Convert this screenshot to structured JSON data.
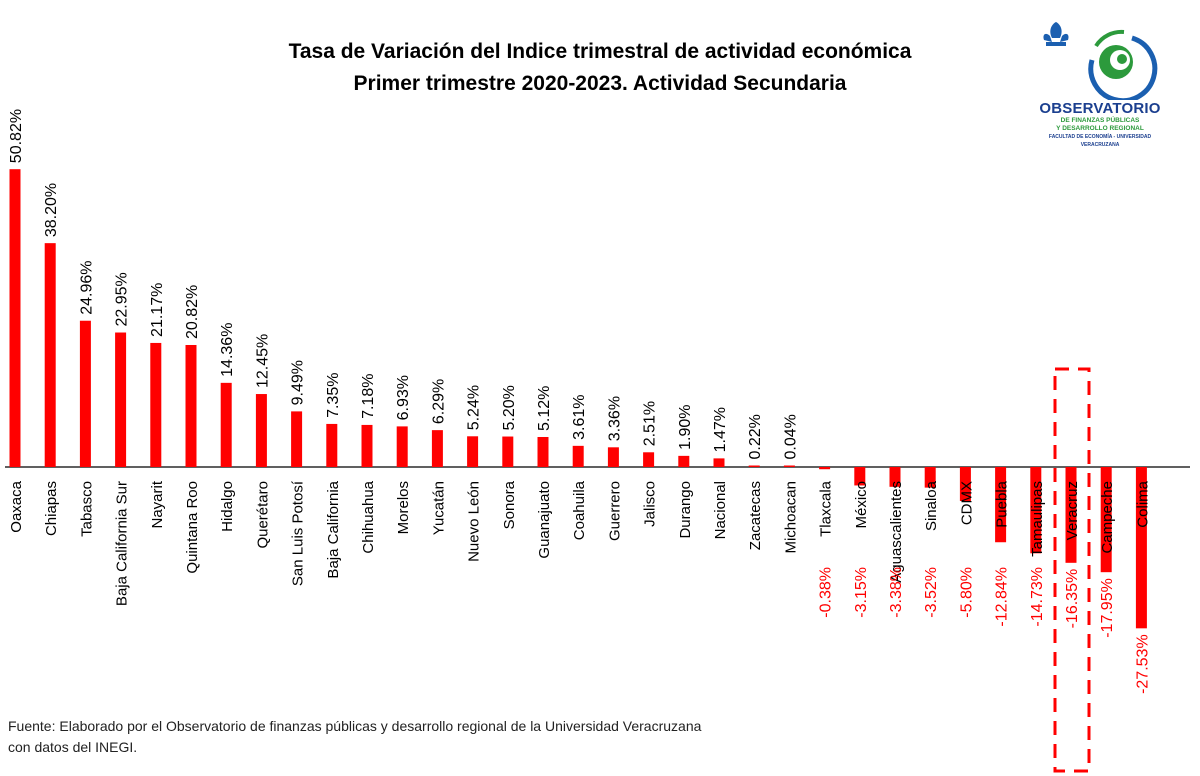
{
  "title_line1": "Tasa de Variación del Indice trimestral de actividad económica",
  "title_line2": "Primer trimestre 2020-2023. Actividad Secundaria",
  "logo": {
    "name": "OBSERVATORIO",
    "sub1": "DE FINANZAS PÚBLICAS",
    "sub2": "Y DESARROLLO REGIONAL",
    "sub3": "FACULTAD DE ECONOMÍA - UNIVERSIDAD VERACRUZANA"
  },
  "footer_line1": "Fuente: Elaborado por el Observatorio de finanzas públicas y desarrollo regional de la Universidad Veracruzana",
  "footer_line2": "con datos del INEGI.",
  "colors": {
    "bar": "#ff0000",
    "negative_label": "#ff0000",
    "highlight": "#ff0000"
  },
  "chart_data": {
    "type": "bar",
    "title": "Tasa de Variación del Indice trimestral de actividad económica Primer trimestre 2020-2023. Actividad Secundaria",
    "xlabel": "",
    "ylabel": "",
    "ylim": [
      -27.53,
      50.82
    ],
    "categories": [
      "Oaxaca",
      "Chiapas",
      "Tabasco",
      "Baja California Sur",
      "Nayarit",
      "Quintana Roo",
      "Hidalgo",
      "Querétaro",
      "San Luis Potosí",
      "Baja California",
      "Chihuahua",
      "Morelos",
      "Yucatán",
      "Nuevo León",
      "Sonora",
      "Guanajuato",
      "Coahuila",
      "Guerrero",
      "Jalisco",
      "Durango",
      "Nacional",
      "Zacatecas",
      "Michoacan",
      "Tlaxcala",
      "México",
      "Aguascalientes",
      "Sinaloa",
      "CDMX",
      "Puebla",
      "Tamaulipas",
      "Veracruz",
      "Campeche",
      "Colima"
    ],
    "values": [
      50.82,
      38.2,
      24.96,
      22.95,
      21.17,
      20.82,
      14.36,
      12.45,
      9.49,
      7.35,
      7.18,
      6.93,
      6.29,
      5.24,
      5.2,
      5.12,
      3.61,
      3.36,
      2.51,
      1.9,
      1.47,
      0.22,
      0.04,
      -0.38,
      -3.15,
      -3.38,
      -3.52,
      -5.8,
      -12.84,
      -14.73,
      -16.35,
      -17.95,
      -27.53
    ],
    "labels": [
      "50.82%",
      "38.20%",
      "24.96%",
      "22.95%",
      "21.17%",
      "20.82%",
      "14.36%",
      "12.45%",
      "9.49%",
      "7.35%",
      "7.18%",
      "6.93%",
      "6.29%",
      "5.24%",
      "5.20%",
      "5.12%",
      "3.61%",
      "3.36%",
      "2.51%",
      "1.90%",
      "1.47%",
      "0.22%",
      "0.04%",
      "-0.38%",
      "-3.15%",
      "-3.38%",
      "-3.52%",
      "-5.80%",
      "-12.84%",
      "-14.73%",
      "-16.35%",
      "-17.95%",
      "-27.53%"
    ],
    "highlight": "Veracruz"
  }
}
